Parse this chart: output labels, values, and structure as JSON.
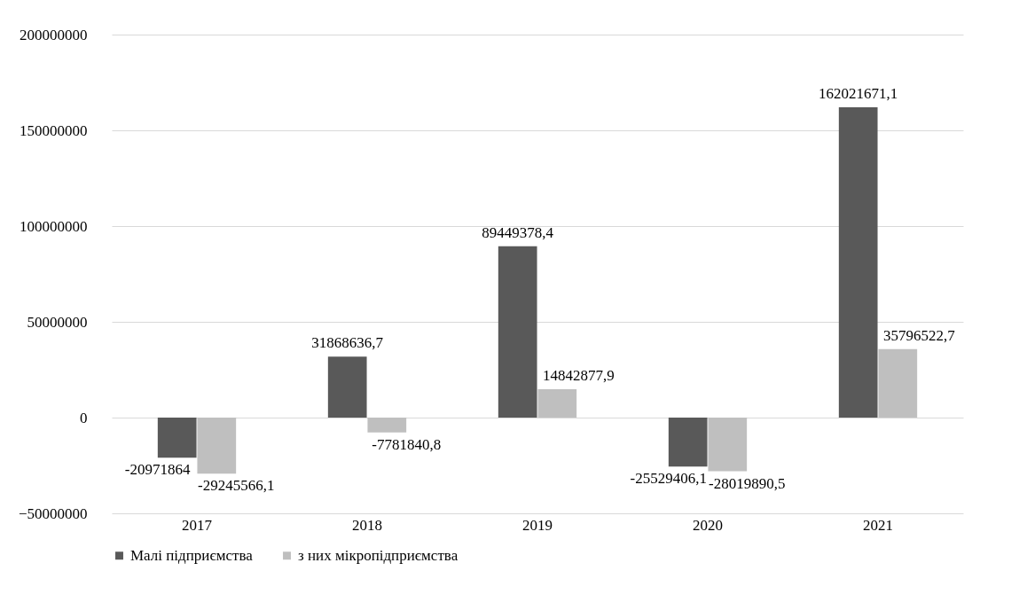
{
  "chart_data": {
    "type": "bar",
    "categories": [
      "2017",
      "2018",
      "2019",
      "2020",
      "2021"
    ],
    "series": [
      {
        "name": "Малі підприємства",
        "color": "#595959",
        "values": [
          -20971864,
          31868636.7,
          89449378.4,
          -25529406.1,
          162021671.1
        ],
        "value_labels": [
          "-20971864",
          "31868636,7",
          "89449378,4",
          "-25529406,1",
          "162021671,1"
        ]
      },
      {
        "name": "з них мікропідприємства",
        "color": "#bfbfbf",
        "values": [
          -29245566.1,
          -7781840.8,
          14842877.9,
          -28019890.5,
          35796522.7
        ],
        "value_labels": [
          "-29245566,1",
          "-7781840,8",
          "14842877,9",
          "-28019890,5",
          "35796522,7"
        ]
      }
    ],
    "ylim": [
      -50000000,
      200000000
    ],
    "yticks": [
      -50000000,
      0,
      50000000,
      100000000,
      150000000,
      200000000
    ],
    "grid": "y",
    "legend": "bottom"
  }
}
